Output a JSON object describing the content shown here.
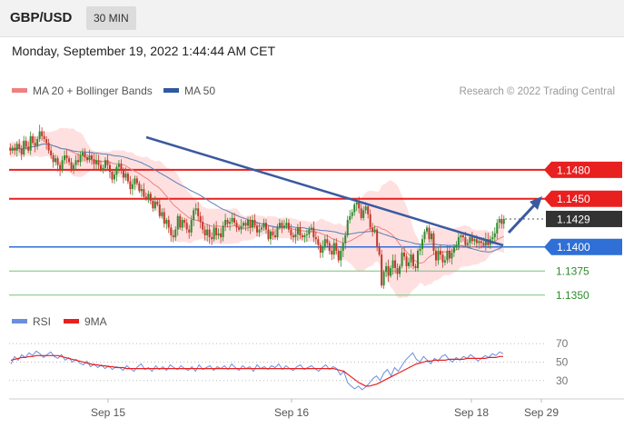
{
  "header": {
    "pair": "GBP/USD",
    "timeframe": "30 MIN",
    "datetime": "Monday, September 19, 2022 1:44:44 AM CET"
  },
  "legend": {
    "ma20": "MA 20 + Bollinger Bands",
    "ma50": "MA 50",
    "credit": "Research © 2022 Trading Central",
    "rsi": "RSI",
    "ma9": "9MA"
  },
  "colors": {
    "up": "#2e8b2e",
    "down": "#c0392b",
    "band": "#ffd6d6",
    "ma20": "#f08080",
    "ma50": "#5a7fb5",
    "resistance": "#e82020",
    "support_blue": "#2f6fd6",
    "support_green": "#7cc17c",
    "trendline": "#3a5aa0",
    "current": "#333333",
    "rsi": "#6b8fe0",
    "rsi_ma": "#e82020"
  },
  "chart_data": [
    {
      "type": "candlestick",
      "title": "GBP/USD 30 MIN",
      "ylim": [
        1.1345,
        1.1545
      ],
      "levels": [
        {
          "value": 1.148,
          "label": "1.1480",
          "kind": "resistance"
        },
        {
          "value": 1.145,
          "label": "1.1450",
          "kind": "resistance"
        },
        {
          "value": 1.1429,
          "label": "1.1429",
          "kind": "current"
        },
        {
          "value": 1.14,
          "label": "1.1400",
          "kind": "support_blue"
        },
        {
          "value": 1.1375,
          "label": "1.1375",
          "kind": "support_green"
        },
        {
          "value": 1.135,
          "label": "1.1350",
          "kind": "support_green"
        }
      ],
      "x_ticks": [
        "Sep 15",
        "Sep 16",
        "Sep 18",
        "Sep 29"
      ],
      "close": [
        1.15,
        1.1503,
        1.15,
        1.1507,
        1.1502,
        1.1496,
        1.151,
        1.1504,
        1.15,
        1.1515,
        1.1508,
        1.1505,
        1.1512,
        1.152,
        1.1515,
        1.1512,
        1.1508,
        1.15,
        1.1495,
        1.1488,
        1.1492,
        1.1485,
        1.148,
        1.149,
        1.1495,
        1.1492,
        1.1488,
        1.148,
        1.1485,
        1.149,
        1.1488,
        1.1495,
        1.1498,
        1.1493,
        1.149,
        1.1495,
        1.1491,
        1.1486,
        1.149,
        1.1485,
        1.148,
        1.1482,
        1.149,
        1.1485,
        1.1478,
        1.147,
        1.1475,
        1.1483,
        1.1486,
        1.148,
        1.1472,
        1.1476,
        1.1468,
        1.146,
        1.1465,
        1.1471,
        1.1466,
        1.1458,
        1.146,
        1.1452,
        1.145,
        1.1455,
        1.1448,
        1.144,
        1.1447,
        1.1444,
        1.1432,
        1.1436,
        1.1424,
        1.1428,
        1.142,
        1.1412,
        1.141,
        1.1418,
        1.1432,
        1.142,
        1.1428,
        1.1425,
        1.1418,
        1.1415,
        1.1428,
        1.1438,
        1.144,
        1.1432,
        1.1426,
        1.1418,
        1.1412,
        1.1418,
        1.141,
        1.1408,
        1.142,
        1.1412,
        1.1414,
        1.141,
        1.1422,
        1.1428,
        1.1424,
        1.1426,
        1.143,
        1.1425,
        1.142,
        1.1418,
        1.1422,
        1.1425,
        1.1422,
        1.1428,
        1.142,
        1.1428,
        1.1422,
        1.1415,
        1.1418,
        1.142,
        1.1425,
        1.1418,
        1.1408,
        1.1416,
        1.1412,
        1.141,
        1.142,
        1.1425,
        1.142,
        1.1422,
        1.1425,
        1.1418,
        1.1412,
        1.141,
        1.1413,
        1.142,
        1.1412,
        1.141,
        1.1412,
        1.1413,
        1.1418,
        1.142,
        1.141,
        1.1408,
        1.1402,
        1.1394,
        1.14,
        1.1408,
        1.1404,
        1.1396,
        1.1392,
        1.1404,
        1.1396,
        1.1386,
        1.1396,
        1.1404,
        1.1412,
        1.1428,
        1.1432,
        1.1436,
        1.1444,
        1.1446,
        1.144,
        1.143,
        1.1438,
        1.1442,
        1.1434,
        1.142,
        1.1416,
        1.1418,
        1.14,
        1.1392,
        1.136,
        1.1374,
        1.138,
        1.137,
        1.1378,
        1.1386,
        1.1378,
        1.1372,
        1.138,
        1.1394,
        1.139,
        1.138,
        1.1384,
        1.1392,
        1.138,
        1.1378,
        1.1396,
        1.1398,
        1.1408,
        1.1416,
        1.142,
        1.1408,
        1.1414,
        1.1396,
        1.1386,
        1.1396,
        1.1392,
        1.1384,
        1.1386,
        1.1396,
        1.1388,
        1.1394,
        1.14,
        1.1402,
        1.141,
        1.1412,
        1.141,
        1.1402,
        1.1404,
        1.141,
        1.1406,
        1.1408,
        1.1404,
        1.1406,
        1.1404,
        1.1402,
        1.1408,
        1.1402,
        1.1408,
        1.141,
        1.1414,
        1.1425,
        1.1429,
        1.1424,
        1.1429
      ],
      "rsi": {
        "ticks": [
          70,
          50,
          30
        ],
        "ylim": [
          15,
          78
        ],
        "rsi_values": [
          48,
          56,
          52,
          58,
          55,
          60,
          57,
          62,
          59,
          55,
          58,
          61,
          56,
          54,
          58,
          52,
          55,
          50,
          53,
          49,
          47,
          51,
          45,
          48,
          44,
          47,
          43,
          46,
          42,
          45,
          44,
          41,
          46,
          43,
          40,
          45,
          48,
          42,
          44,
          40,
          46,
          42,
          45,
          41,
          47,
          44,
          42,
          46,
          43,
          41,
          45,
          40,
          47,
          42,
          44,
          46,
          41,
          45,
          43,
          46,
          42,
          48,
          44,
          41,
          46,
          43,
          45,
          40,
          47,
          43,
          45,
          42,
          46,
          44,
          48,
          42,
          46,
          43,
          41,
          45,
          47,
          42,
          44,
          46,
          43,
          40,
          44,
          47,
          42,
          45,
          43,
          36,
          40,
          28,
          24,
          21,
          24,
          20,
          23,
          27,
          32,
          35,
          30,
          38,
          42,
          35,
          44,
          40,
          46,
          52,
          56,
          60,
          53,
          50,
          56,
          52,
          48,
          54,
          51,
          56,
          58,
          53,
          50,
          55,
          52,
          56,
          54,
          58,
          55,
          51,
          54,
          57,
          55,
          59,
          57,
          61,
          59
        ],
        "ma_values": [
          52,
          53,
          54,
          55,
          55,
          56,
          56,
          57,
          57,
          57,
          57,
          57,
          57,
          57,
          56,
          55,
          54,
          53,
          52,
          51,
          50,
          49,
          48,
          47,
          47,
          46,
          46,
          45,
          45,
          44,
          44,
          44,
          43,
          43,
          43,
          43,
          43,
          43,
          43,
          43,
          43,
          43,
          43,
          43,
          43,
          43,
          43,
          43,
          43,
          43,
          43,
          43,
          43,
          43,
          43,
          43,
          43,
          43,
          43,
          43,
          43,
          43,
          43,
          43,
          43,
          43,
          43,
          43,
          43,
          43,
          43,
          43,
          43,
          43,
          43,
          43,
          43,
          43,
          43,
          43,
          43,
          43,
          43,
          43,
          43,
          43,
          43,
          43,
          43,
          43,
          42,
          41,
          40,
          37,
          34,
          31,
          28,
          26,
          24,
          24,
          25,
          26,
          28,
          30,
          32,
          34,
          36,
          38,
          40,
          42,
          44,
          46,
          48,
          49,
          50,
          51,
          51,
          52,
          52,
          52,
          52,
          53,
          53,
          53,
          53,
          53,
          54,
          54,
          54,
          54,
          54,
          54,
          55,
          55,
          55,
          56,
          56
        ]
      }
    }
  ]
}
